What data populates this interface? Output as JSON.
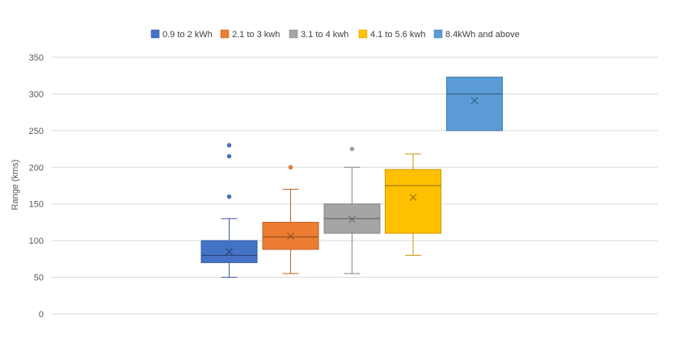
{
  "chart_data": {
    "type": "boxplot",
    "ylabel": "Range (kms)",
    "ylim": [
      0,
      350
    ],
    "yticks": [
      0,
      50,
      100,
      150,
      200,
      250,
      300,
      350
    ],
    "grid": true,
    "legend_position": "top",
    "series": [
      {
        "name": "0.9 to 2 kWh",
        "color": "#4472C4",
        "min": 50,
        "q1": 70,
        "median": 80,
        "q3": 100,
        "max": 130,
        "mean": 85,
        "outliers": [
          160,
          215,
          230
        ]
      },
      {
        "name": "2.1 to 3 kwh",
        "color": "#ED7D31",
        "min": 55,
        "q1": 88,
        "median": 105,
        "q3": 125,
        "max": 170,
        "mean": 106,
        "outliers": [
          200
        ]
      },
      {
        "name": "3.1 to 4 kwh",
        "color": "#A5A5A5",
        "min": 55,
        "q1": 110,
        "median": 130,
        "q3": 150,
        "max": 200,
        "mean": 129,
        "outliers": [
          225
        ]
      },
      {
        "name": "4.1 to 5.6 kwh",
        "color": "#FFC000",
        "min": 80,
        "q1": 110,
        "median": 175,
        "q3": 197,
        "max": 218,
        "mean": 159,
        "outliers": []
      },
      {
        "name": "8.4kWh and above",
        "color": "#5B9BD5",
        "min": 250,
        "q1": 250,
        "median": 300,
        "q3": 323,
        "max": 323,
        "mean": 291,
        "outliers": []
      }
    ]
  }
}
